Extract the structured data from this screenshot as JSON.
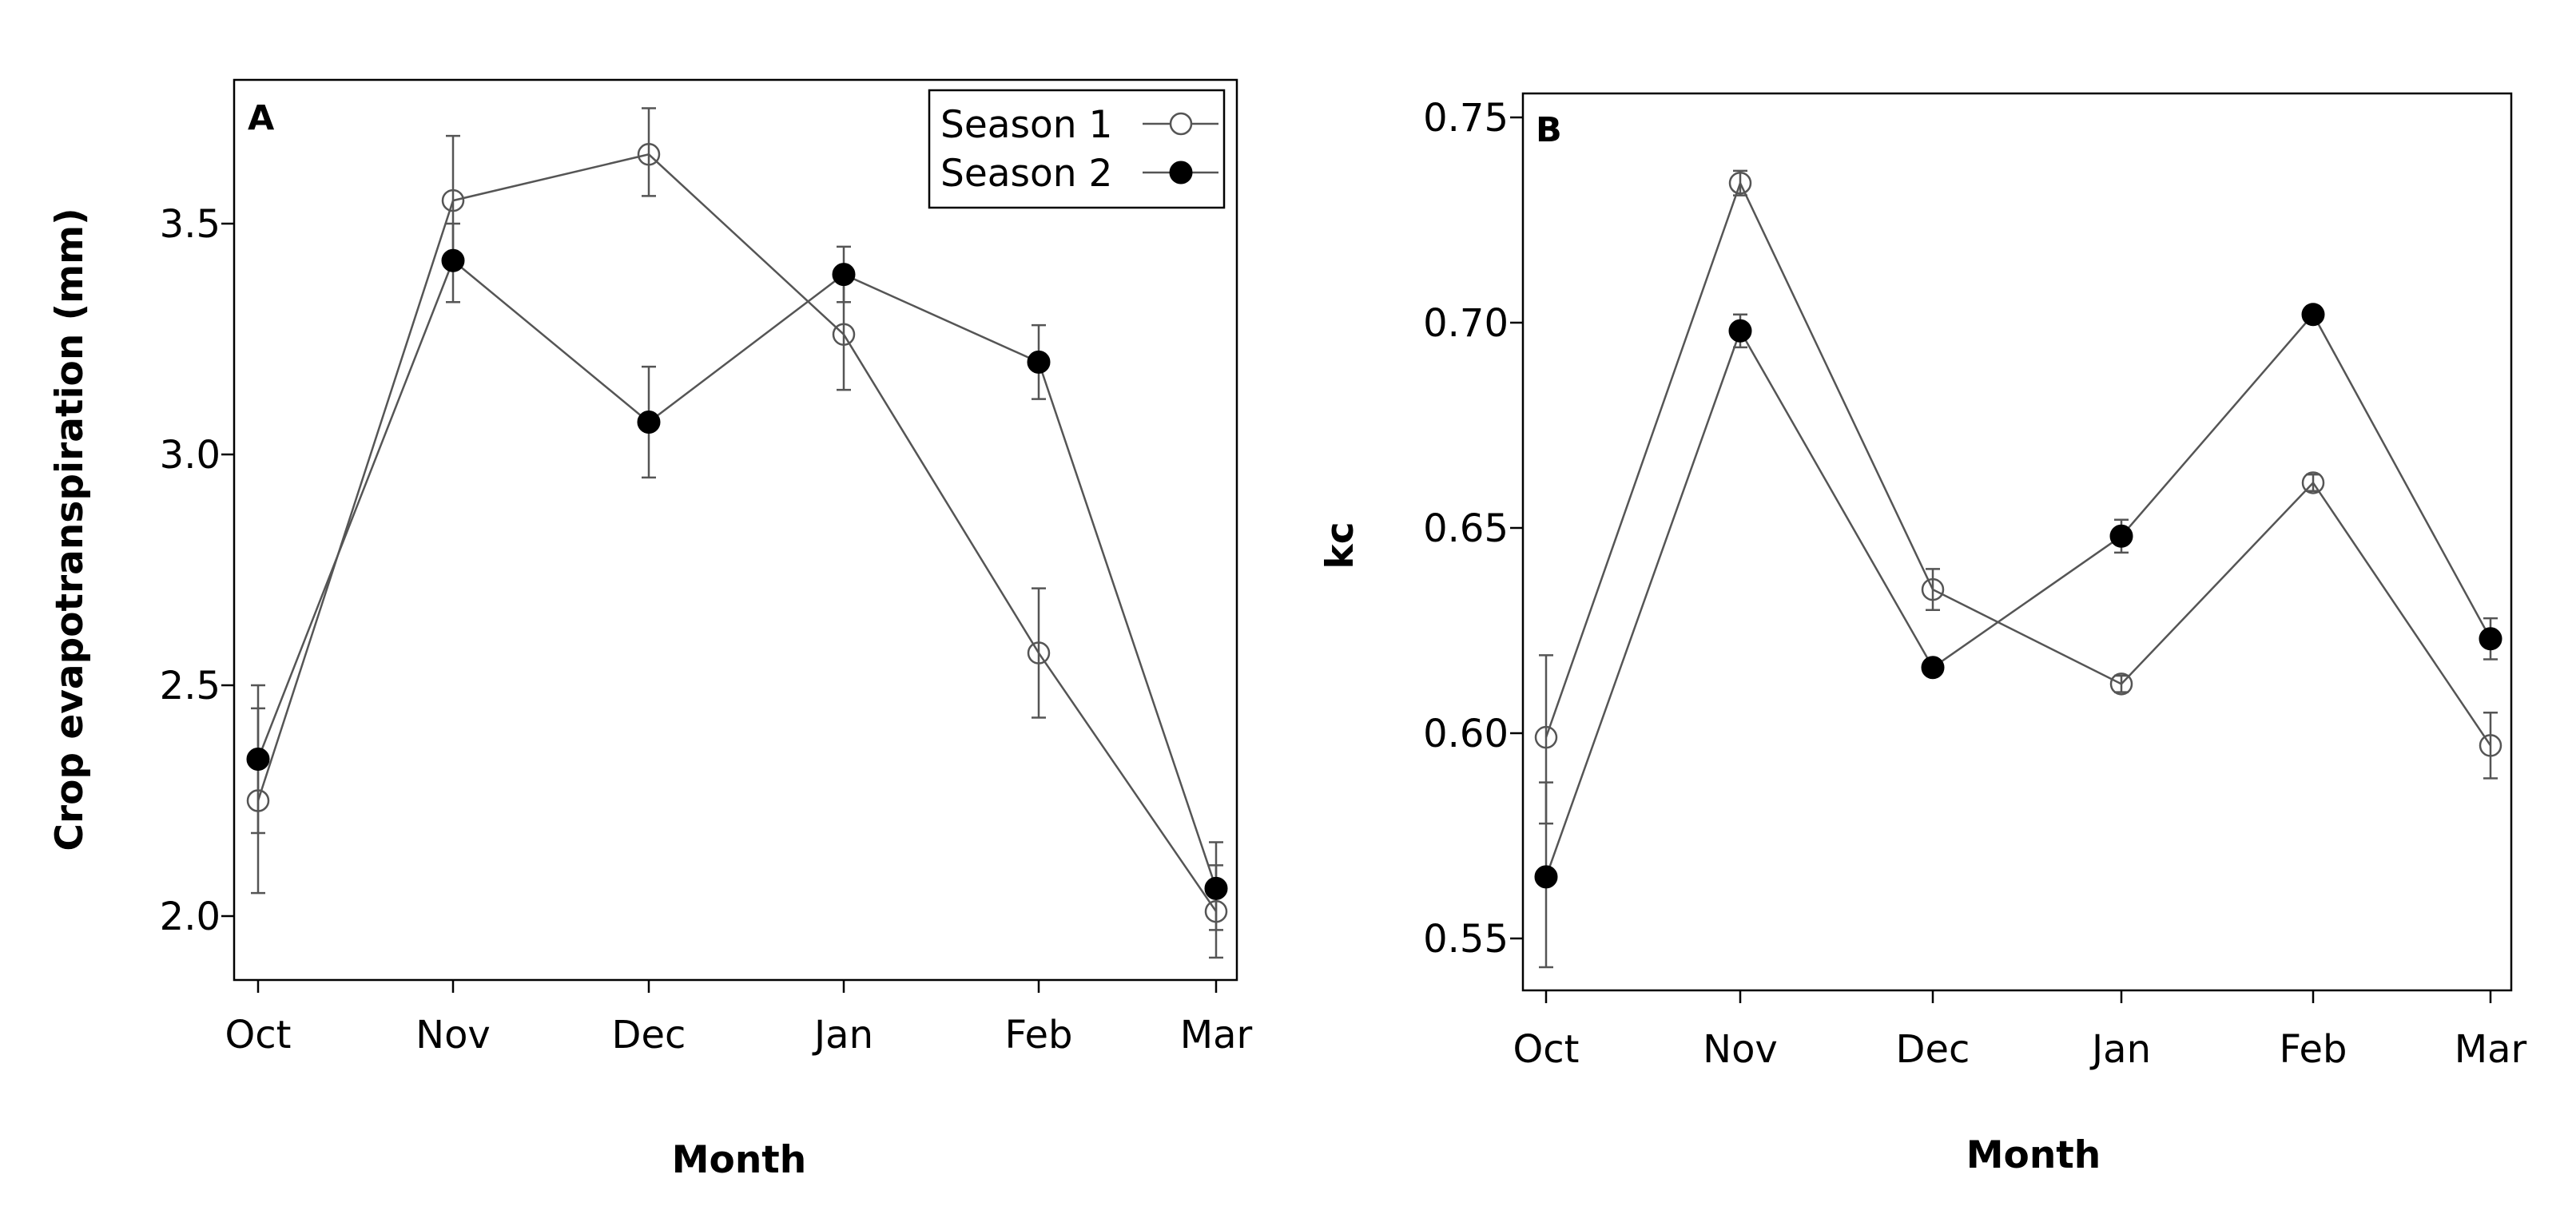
{
  "chart_data": [
    {
      "type": "line",
      "panel_label": "A",
      "title": "",
      "xlabel": "Month",
      "ylabel": "Crop evapotranspiration (mm)",
      "categories": [
        "Oct",
        "Nov",
        "Dec",
        "Jan",
        "Feb",
        "Mar"
      ],
      "ylim": [
        1.85,
        3.78
      ],
      "yticks": [
        "2.0",
        "2.5",
        "3.0",
        "3.5"
      ],
      "legend_position": "top-right",
      "series": [
        {
          "name": "Season 1",
          "marker": "open-circle",
          "values": [
            2.25,
            3.55,
            3.65,
            3.26,
            2.57,
            2.01
          ],
          "error_low": [
            2.05,
            3.42,
            3.56,
            3.14,
            2.43,
            1.91
          ],
          "error_high": [
            2.45,
            3.69,
            3.75,
            3.38,
            2.71,
            2.11
          ]
        },
        {
          "name": "Season 2",
          "marker": "filled-circle",
          "values": [
            2.34,
            3.42,
            3.07,
            3.39,
            3.2,
            2.06
          ],
          "error_low": [
            2.18,
            3.33,
            2.95,
            3.33,
            3.12,
            1.97
          ],
          "error_high": [
            2.5,
            3.5,
            3.19,
            3.45,
            3.28,
            2.16
          ]
        }
      ]
    },
    {
      "type": "line",
      "panel_label": "B",
      "title": "",
      "xlabel": "Month",
      "ylabel": "kc",
      "categories": [
        "Oct",
        "Nov",
        "Dec",
        "Jan",
        "Feb",
        "Mar"
      ],
      "ylim": [
        0.538,
        0.756
      ],
      "yticks": [
        "0.55",
        "0.60",
        "0.65",
        "0.70",
        "0.75"
      ],
      "series": [
        {
          "name": "Season 1",
          "marker": "open-circle",
          "values": [
            0.599,
            0.734,
            0.635,
            0.612,
            0.661,
            0.597
          ],
          "error_low": [
            0.578,
            0.731,
            0.63,
            0.61,
            0.659,
            0.589
          ],
          "error_high": [
            0.619,
            0.737,
            0.64,
            0.614,
            0.663,
            0.605
          ]
        },
        {
          "name": "Season 2",
          "marker": "filled-circle",
          "values": [
            0.565,
            0.698,
            0.616,
            0.648,
            0.702,
            0.623
          ],
          "error_low": [
            0.543,
            0.694,
            0.614,
            0.644,
            0.7,
            0.618
          ],
          "error_high": [
            0.588,
            0.702,
            0.618,
            0.652,
            0.704,
            0.628
          ]
        }
      ]
    }
  ]
}
